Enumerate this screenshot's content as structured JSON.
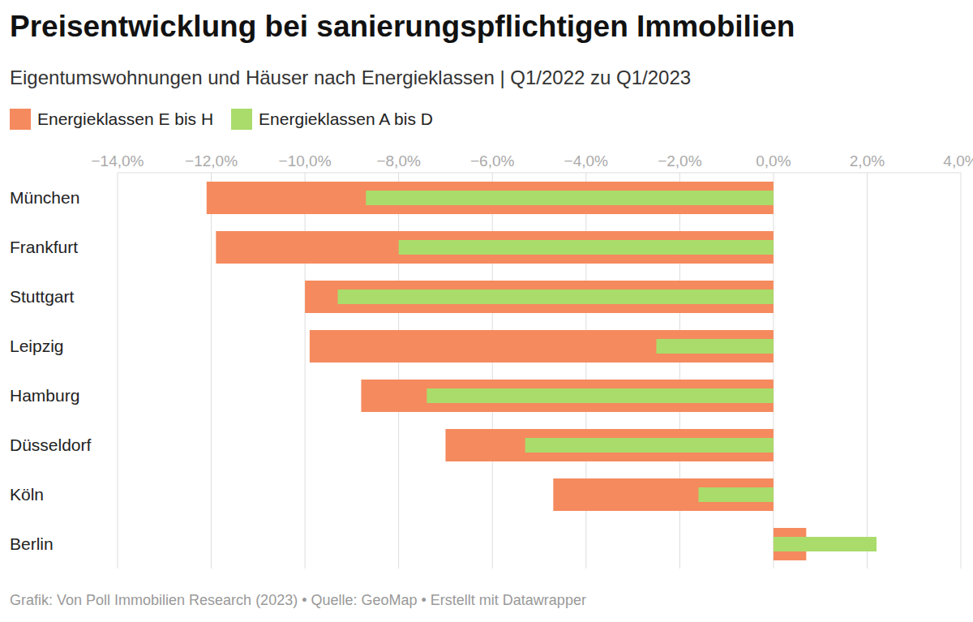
{
  "chart_data": {
    "type": "bar",
    "title": "Preisentwicklung bei sanierungspflichtigen Immobilien",
    "subtitle": "Eigentumswohnungen und Häuser nach Energieklassen | Q1/2022 zu Q1/2023",
    "source": "Grafik: Von Poll Immobilien Research (2023) • Quelle: GeoMap • Erstellt mit Datawrapper",
    "orientation": "horizontal",
    "grid": true,
    "legend": "top-left",
    "categories": [
      "München",
      "Frankfurt",
      "Stuttgart",
      "Leipzig",
      "Hamburg",
      "Düsseldorf",
      "Köln",
      "Berlin"
    ],
    "series": [
      {
        "name": "Energieklassen E bis H",
        "color": "#f58a5e",
        "values": [
          -12.1,
          -11.9,
          -10.0,
          -9.9,
          -8.8,
          -7.0,
          -4.7,
          0.7
        ]
      },
      {
        "name": "Energieklassen A bis D",
        "color": "#aadc6b",
        "values": [
          -8.7,
          -8.0,
          -9.3,
          -2.5,
          -7.4,
          -5.3,
          -1.6,
          2.2
        ]
      }
    ],
    "xlim": [
      -14,
      4
    ],
    "xticks": [
      {
        "value": -14,
        "label": "−14,0%"
      },
      {
        "value": -12,
        "label": "−12,0%"
      },
      {
        "value": -10,
        "label": "−10,0%"
      },
      {
        "value": -8,
        "label": "−8,0%"
      },
      {
        "value": -6,
        "label": "−6,0%"
      },
      {
        "value": -4,
        "label": "−4,0%"
      },
      {
        "value": -2,
        "label": "−2,0%"
      },
      {
        "value": 0,
        "label": "0,0%"
      },
      {
        "value": 2,
        "label": "2,0%"
      },
      {
        "value": 4,
        "label": "4,0%"
      }
    ]
  }
}
